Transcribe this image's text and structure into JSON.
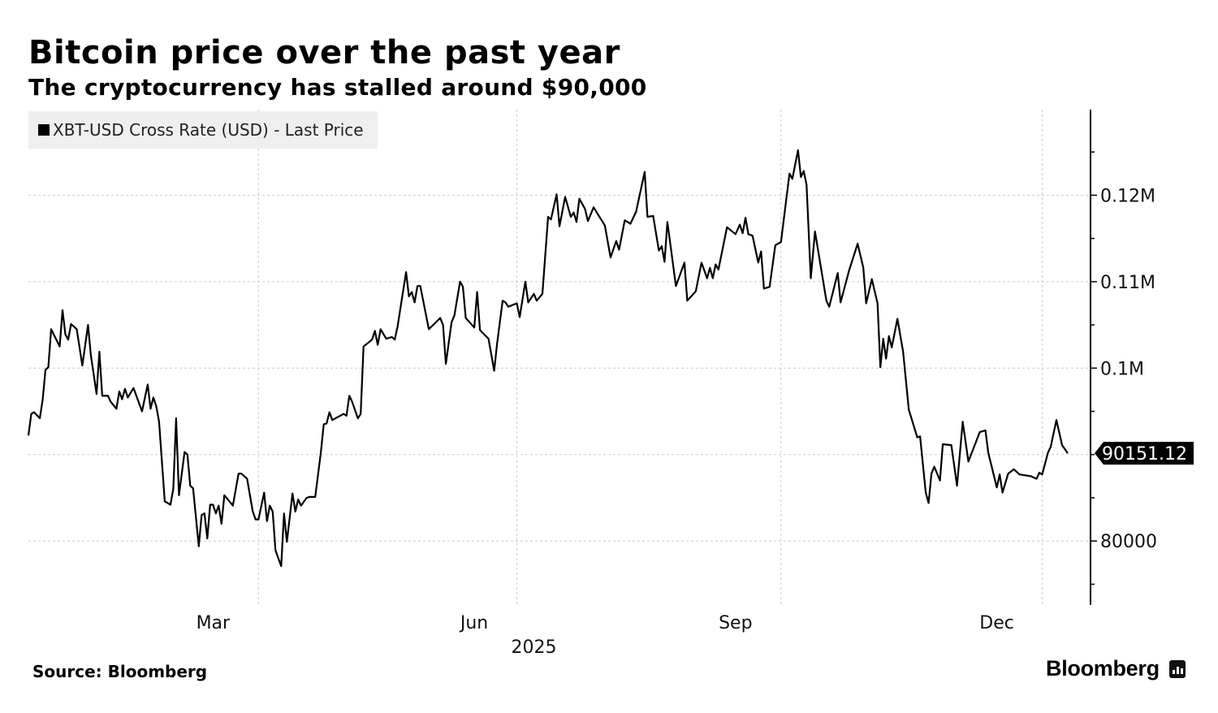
{
  "header": {
    "title": "Bitcoin price over the past year",
    "subtitle": "The cryptocurrency has stalled around $90,000"
  },
  "footer": {
    "source": "Source: Bloomberg",
    "logo": "Bloomberg"
  },
  "colors": {
    "line": "#000000",
    "legend_bg": "#efefef",
    "grid": "#cccccc"
  },
  "chart_data": {
    "type": "line",
    "title": "Bitcoin price over the past year",
    "subtitle": "The cryptocurrency has stalled around $90,000",
    "legend": {
      "entries": [
        "XBT-USD Cross Rate (USD) - Last Price"
      ],
      "placement": "top-left"
    },
    "xlabel": "",
    "ylabel": "",
    "x_unit": "days from start of window",
    "y_unit": "USD thousands",
    "xlim": [
      0,
      366
    ],
    "ylim": [
      72.6,
      129.9
    ],
    "grid": true,
    "x_ticks": [
      {
        "label": "Mar",
        "grid_day": 81,
        "label_day": 65
      },
      {
        "label": "Jun",
        "grid_day": 172,
        "label_day": 157
      },
      {
        "label": "Sep",
        "grid_day": 265,
        "label_day": 249
      },
      {
        "label": "Dec",
        "grid_day": 357,
        "label_day": 341
      }
    ],
    "year_label": {
      "label": "2025",
      "day": 178
    },
    "y_ticks": [
      {
        "value": 120,
        "label": "0.12M"
      },
      {
        "value": 110,
        "label": "0.11M"
      },
      {
        "value": 100,
        "label": "0.1M"
      },
      {
        "value": 80,
        "label": "80000"
      }
    ],
    "y_minor_ticks": [
      75,
      85,
      90,
      95,
      105,
      115,
      125
    ],
    "last_value": {
      "value": 90.15112,
      "label": "90151.12"
    },
    "series": [
      {
        "name": "XBT-USD Cross Rate (USD) - Last Price",
        "points": [
          [
            0,
            92.2
          ],
          [
            1,
            94.7
          ],
          [
            2,
            94.9
          ],
          [
            4,
            94.2
          ],
          [
            5,
            96.3
          ],
          [
            6,
            99.8
          ],
          [
            7,
            100.1
          ],
          [
            8,
            104.5
          ],
          [
            11,
            102.5
          ],
          [
            12,
            106.7
          ],
          [
            13,
            103.9
          ],
          [
            14,
            103.3
          ],
          [
            15,
            105.1
          ],
          [
            17,
            104.5
          ],
          [
            19,
            100.3
          ],
          [
            21,
            105.0
          ],
          [
            22,
            101.5
          ],
          [
            24,
            97.0
          ],
          [
            25,
            101.9
          ],
          [
            26,
            96.8
          ],
          [
            28,
            96.8
          ],
          [
            29,
            96.1
          ],
          [
            31,
            95.3
          ],
          [
            32,
            97.3
          ],
          [
            33,
            96.4
          ],
          [
            34,
            97.6
          ],
          [
            35,
            96.6
          ],
          [
            37,
            97.7
          ],
          [
            40,
            95.0
          ],
          [
            42,
            98.1
          ],
          [
            43,
            95.3
          ],
          [
            44,
            96.6
          ],
          [
            45,
            95.6
          ],
          [
            46,
            93.8
          ],
          [
            48,
            84.6
          ],
          [
            50,
            84.2
          ],
          [
            51,
            86.0
          ],
          [
            52,
            94.2
          ],
          [
            53,
            85.3
          ],
          [
            55,
            90.3
          ],
          [
            56,
            90.0
          ],
          [
            57,
            86.4
          ],
          [
            58,
            86.1
          ],
          [
            60,
            79.4
          ],
          [
            61,
            83.0
          ],
          [
            62,
            83.2
          ],
          [
            63,
            80.3
          ],
          [
            64,
            84.2
          ],
          [
            65,
            84.2
          ],
          [
            66,
            83.2
          ],
          [
            67,
            84.1
          ],
          [
            68,
            82.0
          ],
          [
            69,
            85.3
          ],
          [
            72,
            84.1
          ],
          [
            74,
            87.8
          ],
          [
            75,
            87.8
          ],
          [
            77,
            87.2
          ],
          [
            79,
            83.4
          ],
          [
            80,
            82.5
          ],
          [
            81,
            82.5
          ],
          [
            83,
            85.6
          ],
          [
            84,
            82.3
          ],
          [
            85,
            84.1
          ],
          [
            86,
            83.4
          ],
          [
            87,
            78.9
          ],
          [
            89,
            77.1
          ],
          [
            90,
            83.2
          ],
          [
            91,
            79.9
          ],
          [
            93,
            85.5
          ],
          [
            94,
            83.4
          ],
          [
            95,
            84.8
          ],
          [
            96,
            84.1
          ],
          [
            98,
            85.0
          ],
          [
            99,
            85.1
          ],
          [
            101,
            85.1
          ],
          [
            103,
            90.3
          ],
          [
            104,
            93.5
          ],
          [
            105,
            93.6
          ],
          [
            106,
            94.9
          ],
          [
            107,
            94.0
          ],
          [
            111,
            94.7
          ],
          [
            112,
            94.5
          ],
          [
            113,
            96.8
          ],
          [
            114,
            96.1
          ],
          [
            116,
            94.2
          ],
          [
            117,
            94.7
          ],
          [
            118,
            102.5
          ],
          [
            121,
            103.3
          ],
          [
            122,
            104.3
          ],
          [
            123,
            102.7
          ],
          [
            124,
            104.5
          ],
          [
            126,
            103.4
          ],
          [
            128,
            103.6
          ],
          [
            129,
            103.3
          ],
          [
            130,
            104.8
          ],
          [
            133,
            111.1
          ],
          [
            134,
            108.3
          ],
          [
            135,
            108.8
          ],
          [
            136,
            107.6
          ],
          [
            137,
            109.5
          ],
          [
            138,
            109.5
          ],
          [
            141,
            104.5
          ],
          [
            145,
            105.8
          ],
          [
            146,
            105.0
          ],
          [
            147,
            100.5
          ],
          [
            149,
            105.3
          ],
          [
            150,
            106.1
          ],
          [
            152,
            110.0
          ],
          [
            153,
            109.4
          ],
          [
            154,
            105.8
          ],
          [
            157,
            104.7
          ],
          [
            158,
            108.8
          ],
          [
            159,
            104.4
          ],
          [
            162,
            103.4
          ],
          [
            164,
            99.7
          ],
          [
            165,
            102.7
          ],
          [
            167,
            107.8
          ],
          [
            168,
            107.6
          ],
          [
            169,
            107.1
          ],
          [
            172,
            107.5
          ],
          [
            173,
            105.9
          ],
          [
            175,
            110.0
          ],
          [
            176,
            107.6
          ],
          [
            178,
            108.6
          ],
          [
            179,
            107.8
          ],
          [
            181,
            108.6
          ],
          [
            183,
            117.5
          ],
          [
            184,
            117.2
          ],
          [
            186,
            120.1
          ],
          [
            187,
            116.4
          ],
          [
            189,
            119.8
          ],
          [
            191,
            117.5
          ],
          [
            192,
            118.0
          ],
          [
            193,
            116.9
          ],
          [
            194,
            119.6
          ],
          [
            196,
            118.4
          ],
          [
            197,
            117.0
          ],
          [
            199,
            118.6
          ],
          [
            203,
            116.5
          ],
          [
            205,
            112.8
          ],
          [
            207,
            114.7
          ],
          [
            208,
            113.7
          ],
          [
            210,
            117.1
          ],
          [
            212,
            116.7
          ],
          [
            214,
            118.1
          ],
          [
            217,
            122.7
          ],
          [
            218,
            117.5
          ],
          [
            220,
            117.6
          ],
          [
            222,
            113.6
          ],
          [
            223,
            114.1
          ],
          [
            224,
            112.3
          ],
          [
            225,
            116.9
          ],
          [
            228,
            109.5
          ],
          [
            231,
            112.2
          ],
          [
            232,
            107.8
          ],
          [
            235,
            108.9
          ],
          [
            237,
            112.2
          ],
          [
            239,
            110.4
          ],
          [
            240,
            111.6
          ],
          [
            241,
            110.4
          ],
          [
            242,
            112.0
          ],
          [
            243,
            111.4
          ],
          [
            246,
            116.3
          ],
          [
            249,
            115.5
          ],
          [
            250.5,
            116.6
          ],
          [
            251.5,
            115.6
          ],
          [
            252.5,
            117.4
          ],
          [
            253.5,
            115.5
          ],
          [
            255,
            115.3
          ],
          [
            257,
            112.2
          ],
          [
            258,
            113.5
          ],
          [
            259,
            109.2
          ],
          [
            261,
            109.4
          ],
          [
            263,
            114.2
          ],
          [
            265,
            114.6
          ],
          [
            268,
            122.5
          ],
          [
            269,
            121.9
          ],
          [
            271,
            125.2
          ],
          [
            272,
            122.1
          ],
          [
            273,
            122.8
          ],
          [
            274,
            121.2
          ],
          [
            275.5,
            110.4
          ],
          [
            277,
            115.8
          ],
          [
            281,
            107.8
          ],
          [
            282,
            107.1
          ],
          [
            285,
            111.0
          ],
          [
            286,
            107.6
          ],
          [
            289,
            111.3
          ],
          [
            292,
            114.4
          ],
          [
            294,
            111.6
          ],
          [
            295,
            107.5
          ],
          [
            297,
            110.3
          ],
          [
            299,
            107.5
          ],
          [
            300,
            100.1
          ],
          [
            301,
            103.4
          ],
          [
            302,
            101.1
          ],
          [
            303,
            103.7
          ],
          [
            304,
            102.4
          ],
          [
            306,
            105.7
          ],
          [
            308,
            101.9
          ],
          [
            310,
            95.2
          ],
          [
            313,
            92.0
          ],
          [
            314,
            92.1
          ],
          [
            316,
            85.6
          ],
          [
            317,
            84.4
          ],
          [
            318,
            87.8
          ],
          [
            319,
            88.6
          ],
          [
            321,
            87.0
          ],
          [
            322,
            91.2
          ],
          [
            325,
            91.1
          ],
          [
            327,
            86.4
          ],
          [
            329,
            93.8
          ],
          [
            331,
            89.2
          ],
          [
            335,
            92.6
          ],
          [
            337,
            92.8
          ],
          [
            338,
            90.2
          ],
          [
            341,
            86.2
          ],
          [
            342,
            87.7
          ],
          [
            343,
            85.6
          ],
          [
            345,
            87.8
          ],
          [
            347,
            88.3
          ],
          [
            349,
            87.7
          ],
          [
            353,
            87.5
          ],
          [
            355,
            87.2
          ],
          [
            356,
            87.9
          ],
          [
            357,
            87.7
          ],
          [
            359,
            90.2
          ],
          [
            360,
            90.9
          ],
          [
            362,
            94.0
          ],
          [
            364,
            91.1
          ],
          [
            366,
            90.15
          ]
        ]
      }
    ]
  }
}
